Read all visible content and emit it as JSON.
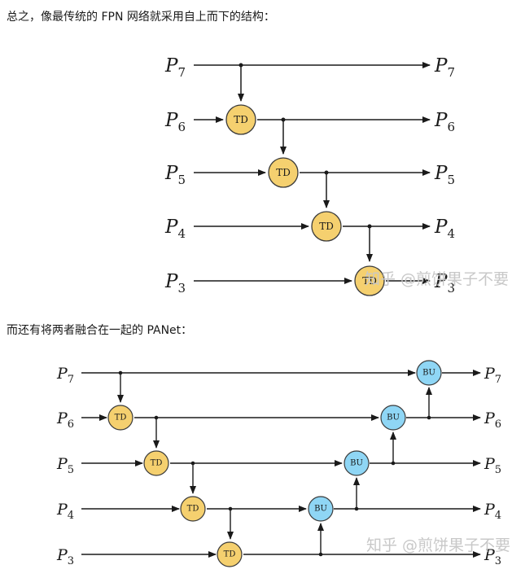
{
  "captions": {
    "fpn": "总之，像最传统的 FPN 网络就采用自上而下的结构：",
    "panet": "而还有将两者融合在一起的 PANet："
  },
  "labels": {
    "p7": "P",
    "p7_sub": "7",
    "p6": "P",
    "p6_sub": "6",
    "p5": "P",
    "p5_sub": "5",
    "p4": "P",
    "p4_sub": "4",
    "p3": "P",
    "p3_sub": "3"
  },
  "nodes": {
    "td": "TD",
    "bu": "BU"
  },
  "watermark": "知乎 @煎饼果子不要",
  "colors": {
    "td_fill": "#f5d06f",
    "td_stroke": "#3a3a3a",
    "bu_fill": "#8fd6f5",
    "line": "#1a1a1a"
  }
}
